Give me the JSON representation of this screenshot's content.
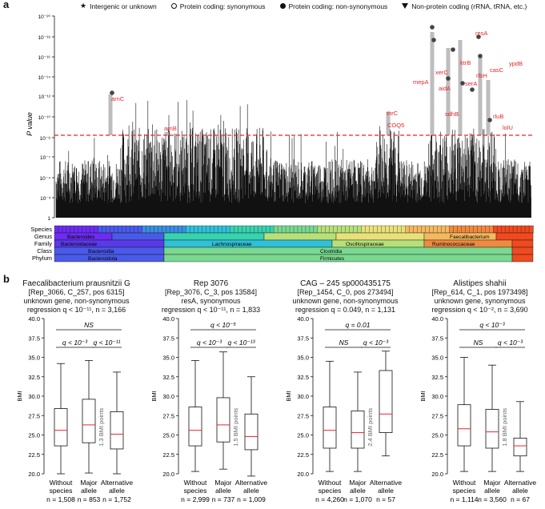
{
  "panel_a": {
    "letter": "a",
    "legend": [
      {
        "icon": "star-icon",
        "label": "Intergenic or unknown"
      },
      {
        "icon": "open-circle-icon",
        "label": "Protein coding: synonymous"
      },
      {
        "icon": "filled-circle-icon",
        "label": "Protein coding: non-synonymous"
      },
      {
        "icon": "triangle-down-icon",
        "label": "Non-protein coding (rRNA, tRNA, etc.)"
      }
    ],
    "ylabel": "P value",
    "yticks": [
      "1",
      "10⁻³",
      "10⁻⁴",
      "10⁻⁷",
      "10⁻⁸",
      "10⁻¹⁰",
      "10⁻¹²",
      "10⁻¹⁴",
      "10⁻¹⁶",
      "10⁻¹⁸",
      "10⁻²⁰"
    ],
    "gene_labels": [
      "arnC",
      "arnB",
      "thrC",
      "COQ5",
      "mepA",
      "aidA",
      "xerC",
      "ktrB",
      "resA",
      "sdhB",
      "serA",
      "rlbH",
      "casC",
      "ypdB",
      "rluB",
      "lolU"
    ],
    "taxonomy_rows": [
      "Species",
      "Genus",
      "Family",
      "Class",
      "Phylum"
    ],
    "taxonomy_labels": {
      "genus": [
        "Bacteroides",
        "Faecalibacterium"
      ],
      "family": [
        "Bacteroidaceae",
        "Lachnospiraceae",
        "Oscillospiraceae",
        "Ruminococcaceae"
      ],
      "class": [
        "Bacteroidia",
        "Clostridia"
      ],
      "phylum": [
        "Bacteroidota",
        "Firmicutes"
      ]
    },
    "threshold_color": "#e8252a"
  },
  "panel_b": {
    "letter": "b",
    "ylabel": "BMI",
    "yticks": [
      "20.0",
      "22.5",
      "25.0",
      "27.5",
      "30.0",
      "32.5",
      "35.0",
      "37.5",
      "40.0"
    ],
    "plots": [
      {
        "title": "Faecalibacterium prausnitzii G",
        "line2": "[Rep_3066, C_257, pos 6315]",
        "line3": "unknown gene, non-synonymous",
        "line4": "regression q < 10⁻¹¹, n = 3,166",
        "top_annot": "NS",
        "left_annot": "q < 10⁻³",
        "right_annot": "q < 10⁻¹¹",
        "effect_label": "1.3 BMI points",
        "categories": [
          "Without species",
          "Major allele",
          "Alternative allele"
        ],
        "n_labels": [
          "n = 1,508",
          "n = 853",
          "n = 1,752"
        ],
        "boxes": [
          {
            "whisker_low": 20.0,
            "q1": 23.6,
            "median": 25.6,
            "q3": 28.4,
            "whisker_high": 34.2
          },
          {
            "whisker_low": 20.1,
            "q1": 24.0,
            "median": 26.3,
            "q3": 29.6,
            "whisker_high": 34.6
          },
          {
            "whisker_low": 20.0,
            "q1": 23.2,
            "median": 25.1,
            "q3": 28.0,
            "whisker_high": 33.1
          }
        ]
      },
      {
        "title": "Rep 3076",
        "line2": "[Rep_3076, C_3, pos 13584]",
        "line3": "resA, synonymous",
        "line4": "regression q < 10⁻¹¹, n = 1,833",
        "top_annot": "q < 10⁻⁵",
        "left_annot": "q < 10⁻³",
        "right_annot": "q < 10⁻¹³",
        "effect_label": "1.5 BMI points",
        "categories": [
          "Without species",
          "Major allele",
          "Alternative allele"
        ],
        "n_labels": [
          "n = 2,999",
          "n = 737",
          "n = 1,009"
        ],
        "boxes": [
          {
            "whisker_low": 20.3,
            "q1": 23.6,
            "median": 25.6,
            "q3": 28.6,
            "whisker_high": 34.6
          },
          {
            "whisker_low": 20.6,
            "q1": 24.1,
            "median": 26.3,
            "q3": 29.8,
            "whisker_high": 35.7
          },
          {
            "whisker_low": 19.7,
            "q1": 23.1,
            "median": 24.8,
            "q3": 27.7,
            "whisker_high": 32.5
          }
        ]
      },
      {
        "title": "CAG – 245 sp000435175",
        "line2": "[Rep_1454, C_0, pos 273494]",
        "line3": "unknown gene, non-synonymous",
        "line4": "regression q = 0.049, n = 1,131",
        "top_annot": "q = 0.01",
        "left_annot": "NS",
        "right_annot": "q < 10⁻³",
        "effect_label": "2.4 BMI points",
        "categories": [
          "Without species",
          "Major allele",
          "Alternative allele"
        ],
        "n_labels": [
          "n = 4,260",
          "n = 1,070",
          "n = 57"
        ],
        "boxes": [
          {
            "whisker_low": 20.3,
            "q1": 23.3,
            "median": 25.6,
            "q3": 28.6,
            "whisker_high": 34.5
          },
          {
            "whisker_low": 20.3,
            "q1": 23.3,
            "median": 25.3,
            "q3": 28.1,
            "whisker_high": 33.1
          },
          {
            "whisker_low": 22.3,
            "q1": 25.3,
            "median": 27.7,
            "q3": 33.3,
            "whisker_high": 35.8
          }
        ]
      },
      {
        "title": "Alistipes shahii",
        "line2": "[Rep_614, C_1, pos 1973498]",
        "line3": "unknown gene, synonymous",
        "line4": "regression q < 10⁻², n = 3,690",
        "top_annot": "q < 10⁻³",
        "left_annot": "NS",
        "right_annot": "q < 10⁻³",
        "effect_label": "1.8 BMI points",
        "categories": [
          "Without species",
          "Major allele",
          "Alternative allele"
        ],
        "n_labels": [
          "n = 1,114",
          "n = 3,560",
          "n = 67"
        ],
        "boxes": [
          {
            "whisker_low": 20.3,
            "q1": 23.6,
            "median": 25.8,
            "q3": 28.9,
            "whisker_high": 35.0
          },
          {
            "whisker_low": 20.3,
            "q1": 23.3,
            "median": 25.4,
            "q3": 28.3,
            "whisker_high": 34.0
          },
          {
            "whisker_low": 20.3,
            "q1": 22.3,
            "median": 23.6,
            "q3": 24.6,
            "whisker_high": 29.3
          }
        ]
      }
    ]
  }
}
